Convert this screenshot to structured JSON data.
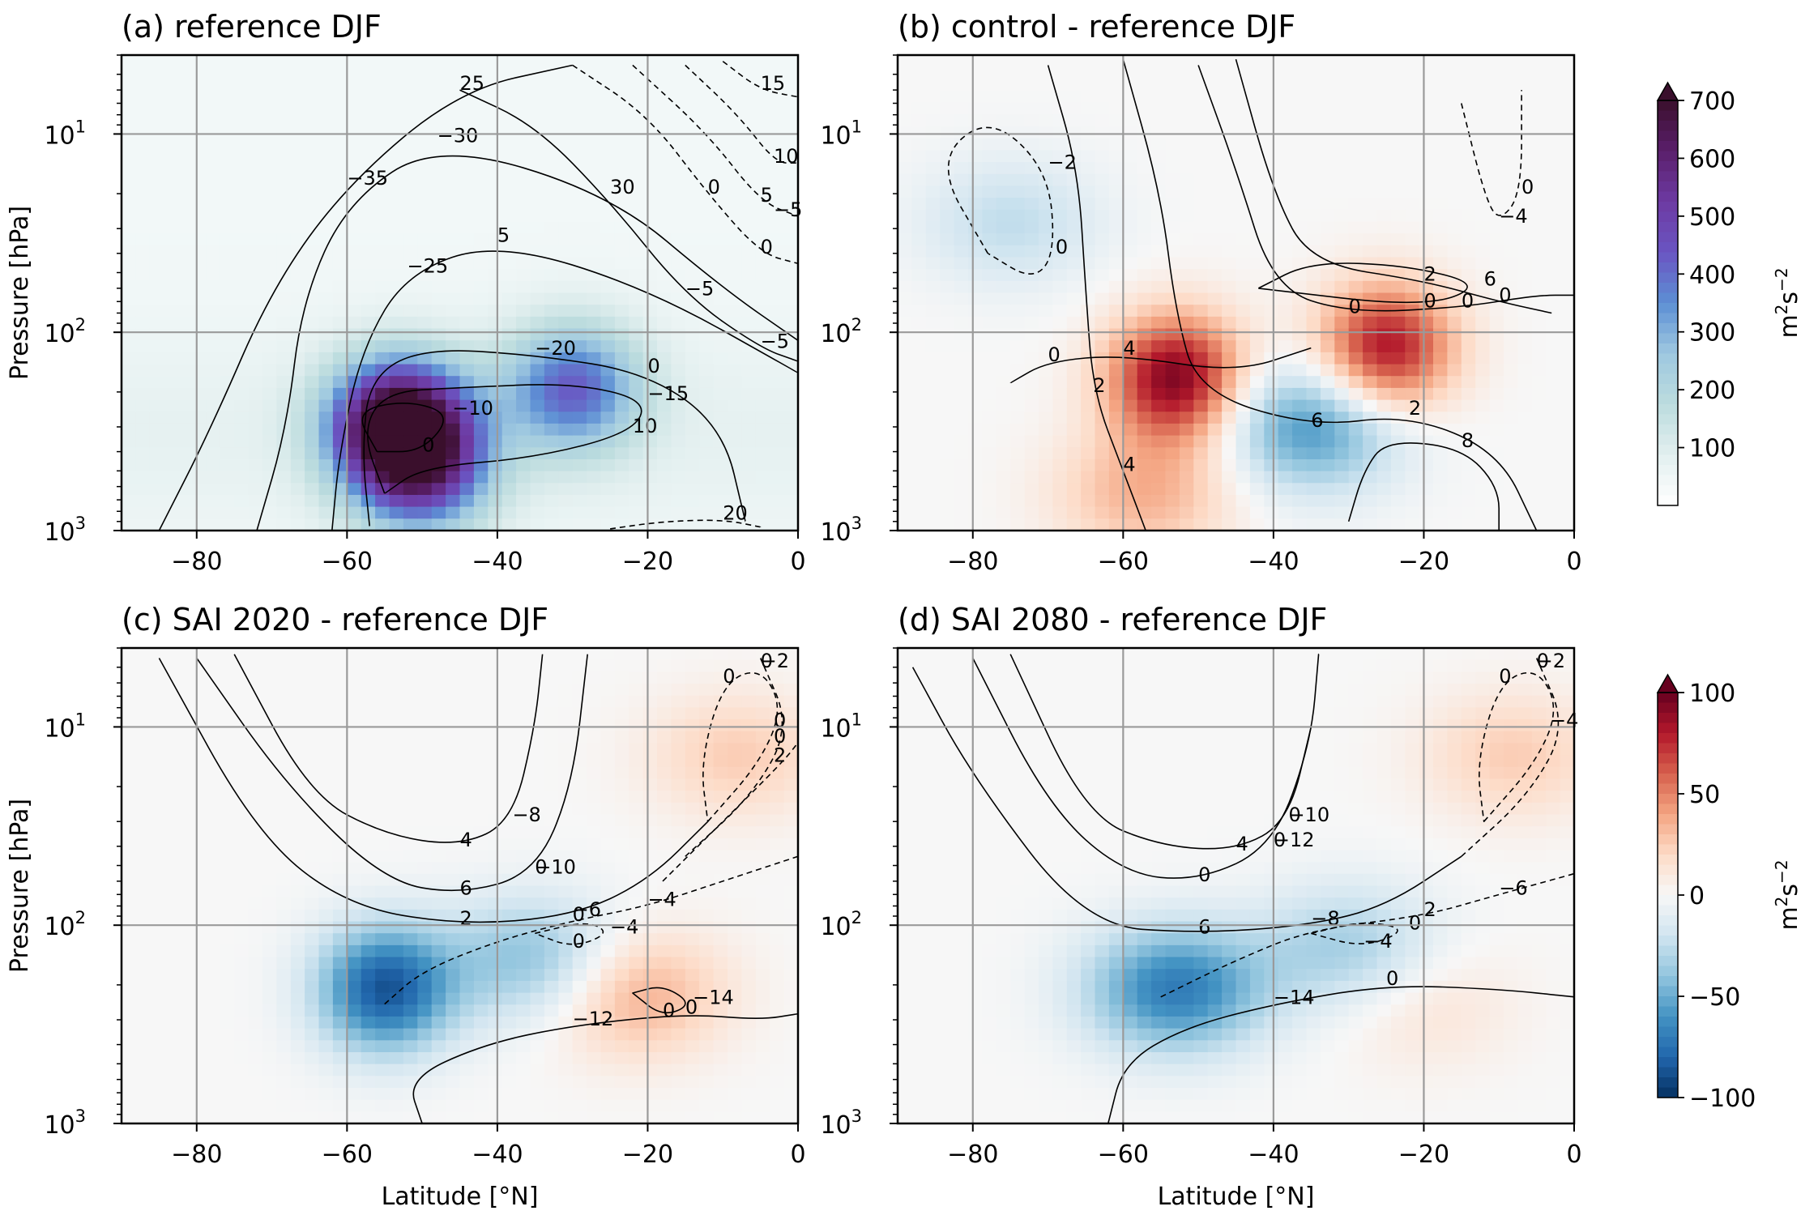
{
  "figure": {
    "xlabel": "Latitude [°N]",
    "ylabel": "Pressure [hPa]",
    "x_ticks": [
      "−80",
      "−60",
      "−40",
      "−20",
      "0"
    ],
    "y_ticks": [
      {
        "base": "10",
        "exp": "1"
      },
      {
        "base": "10",
        "exp": "2"
      },
      {
        "base": "10",
        "exp": "3"
      }
    ]
  },
  "colorbars": [
    {
      "id": "cb-top",
      "cmap": "BuPu",
      "range": [
        0,
        700
      ],
      "ticks": [
        "100",
        "200",
        "300",
        "400",
        "500",
        "600",
        "700"
      ],
      "unit": {
        "base": "m",
        "sup1": "2",
        "mid": "s",
        "sup2": "−2"
      },
      "colors": [
        "#ffffff",
        "#e2efef",
        "#bcdcde",
        "#9ec8e0",
        "#5d8fd4",
        "#6a55c2",
        "#6d3aa2",
        "#5a1f6b",
        "#3a0f2c"
      ]
    },
    {
      "id": "cb-bottom",
      "cmap": "RdBu_r",
      "range": [
        -100,
        100
      ],
      "ticks": [
        "−100",
        "−50",
        "0",
        "50",
        "100"
      ],
      "unit": {
        "base": "m",
        "sup1": "2",
        "mid": "s",
        "sup2": "−2"
      },
      "colors": [
        "#053061",
        "#2166ac",
        "#4393c3",
        "#92c5de",
        "#d1e5f0",
        "#f7f7f7",
        "#fddbc7",
        "#f4a582",
        "#d6604d",
        "#b2182b",
        "#67001f"
      ]
    }
  ],
  "chart_data": [
    {
      "type": "heatmap",
      "panel": "a",
      "title": "(a) reference DJF",
      "x_range": [
        -90,
        0
      ],
      "y_range_hPa": [
        1000,
        4
      ],
      "y_scale": "log",
      "grid": true,
      "colorbar": "cb-top",
      "field_peaks": [
        {
          "lat": -53,
          "p_hPa": 290,
          "value": 690
        },
        {
          "lat": -30,
          "p_hPa": 190,
          "value": 360
        },
        {
          "lat": -50,
          "p_hPa": 500,
          "value": 380
        }
      ],
      "contour_labels": [
        "−35",
        "−30",
        "−25",
        "−20",
        "−15",
        "−10",
        "−5",
        "0",
        "5",
        "10",
        "15",
        "20",
        "25",
        "30",
        "5",
        "0",
        "10",
        "0",
        "−5",
        "0",
        "−5"
      ]
    },
    {
      "type": "heatmap",
      "panel": "b",
      "title": "(b) control - reference DJF",
      "x_range": [
        -90,
        0
      ],
      "y_range_hPa": [
        1000,
        4
      ],
      "y_scale": "log",
      "grid": true,
      "colorbar": "cb-top",
      "diverging": true,
      "field_peaks": [
        {
          "lat": -53,
          "p_hPa": 170,
          "value": 95
        },
        {
          "lat": -25,
          "p_hPa": 120,
          "value": 85
        },
        {
          "lat": -35,
          "p_hPa": 300,
          "value": -60
        },
        {
          "lat": -75,
          "p_hPa": 28,
          "value": -25
        },
        {
          "lat": -57,
          "p_hPa": 650,
          "value": 35
        }
      ],
      "contour_labels": [
        "2",
        "6",
        "2",
        "0",
        "−2",
        "−4",
        "6",
        "4",
        "8",
        "4",
        "2",
        "0",
        "0",
        "0",
        "0",
        "0",
        "0"
      ]
    },
    {
      "type": "heatmap",
      "panel": "c",
      "title": "(c) SAI 2020 - reference DJF",
      "x_range": [
        -90,
        0
      ],
      "y_range_hPa": [
        1000,
        4
      ],
      "y_scale": "log",
      "grid": true,
      "colorbar": "cb-bottom",
      "field_peaks": [
        {
          "lat": -55,
          "p_hPa": 210,
          "value": -85
        },
        {
          "lat": -35,
          "p_hPa": 150,
          "value": -45
        },
        {
          "lat": -22,
          "p_hPa": 220,
          "value": 40
        },
        {
          "lat": -8,
          "p_hPa": 14,
          "value": 25
        }
      ],
      "contour_labels": [
        "6",
        "4",
        "2",
        "0",
        "−4",
        "−2",
        "0",
        "2",
        "−14",
        "−12",
        "−10",
        "−8",
        "−6",
        "−4",
        "0",
        "0",
        "0",
        "0",
        "0",
        "0",
        "0"
      ]
    },
    {
      "type": "heatmap",
      "panel": "d",
      "title": "(d) SAI 2080 - reference DJF",
      "x_range": [
        -90,
        0
      ],
      "y_range_hPa": [
        1000,
        4
      ],
      "y_scale": "log",
      "grid": true,
      "colorbar": "cb-bottom",
      "field_peaks": [
        {
          "lat": -53,
          "p_hPa": 210,
          "value": -70
        },
        {
          "lat": -30,
          "p_hPa": 130,
          "value": -35
        },
        {
          "lat": -8,
          "p_hPa": 14,
          "value": 25
        },
        {
          "lat": -20,
          "p_hPa": 250,
          "value": 15
        }
      ],
      "contour_labels": [
        "0",
        "4",
        "6",
        "2",
        "0",
        "−2",
        "−4",
        "−14",
        "−12",
        "−10",
        "−8",
        "−6",
        "−4",
        "0",
        "0",
        "0",
        "0",
        "0"
      ]
    }
  ]
}
